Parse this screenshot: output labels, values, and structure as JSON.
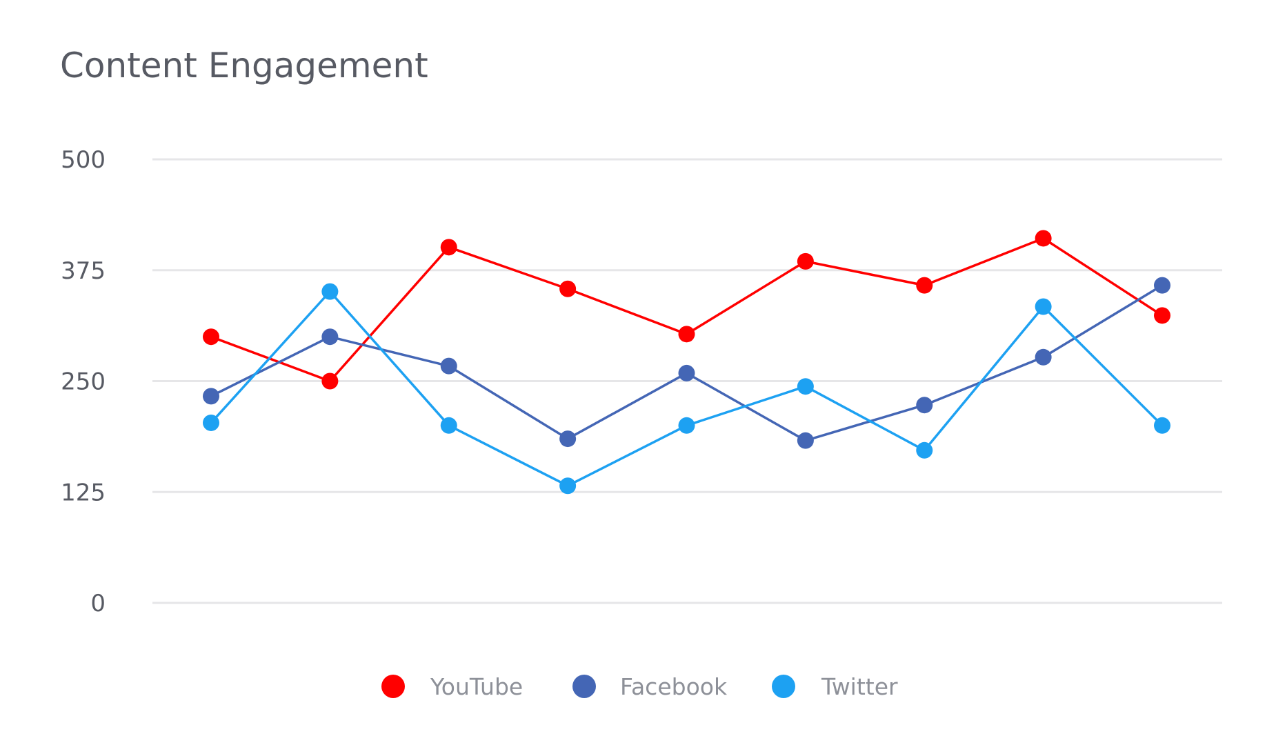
{
  "chart_data": {
    "type": "line",
    "title": "Content Engagement",
    "xlabel": "",
    "ylabel": "",
    "ylim": [
      0,
      500
    ],
    "yticks": [
      "0",
      "125",
      "250",
      "375",
      "500"
    ],
    "grid": true,
    "legend_position": "bottom",
    "x": [
      1,
      2,
      3,
      4,
      5,
      6,
      7,
      8,
      9
    ],
    "series": [
      {
        "name": "YouTube",
        "color": "#ff0000",
        "values": [
          300,
          250,
          401,
          354,
          303,
          385,
          358,
          411,
          324
        ]
      },
      {
        "name": "Facebook",
        "color": "#4466b5",
        "values": [
          233,
          300,
          267,
          185,
          259,
          183,
          223,
          277,
          358
        ]
      },
      {
        "name": "Twitter",
        "color": "#1da1f2",
        "values": [
          203,
          351,
          200,
          132,
          200,
          244,
          172,
          334,
          200
        ]
      }
    ]
  }
}
